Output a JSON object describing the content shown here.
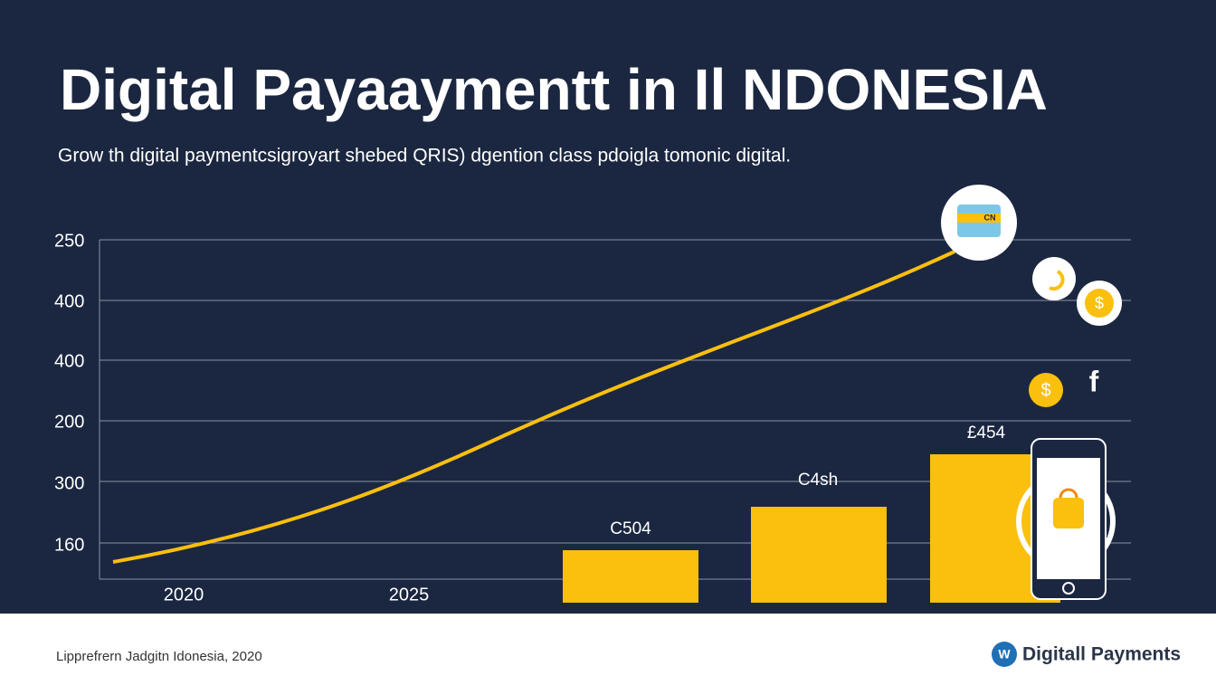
{
  "header": {
    "title": "Digital Payaaymentt in Il NDONESIA",
    "subtitle": "Grow th digital paymentcsigroyart shebed QRIS) dgention class pdoigla tomonic digital."
  },
  "axis": {
    "y_labels": [
      "250",
      "400",
      "400",
      "200",
      "300",
      "160"
    ],
    "x_labels": [
      "2020",
      "2025"
    ]
  },
  "bars": {
    "labels": [
      "C504",
      "C4sh",
      "£454"
    ]
  },
  "icons": {
    "card": "CN",
    "coin_1": "$",
    "coin_2": "$",
    "social": "f"
  },
  "footer": {
    "source": "Lipprefrern Jadgitn Idonesia, 2020",
    "logo": "W",
    "brand": "Digitall Payments"
  }
}
